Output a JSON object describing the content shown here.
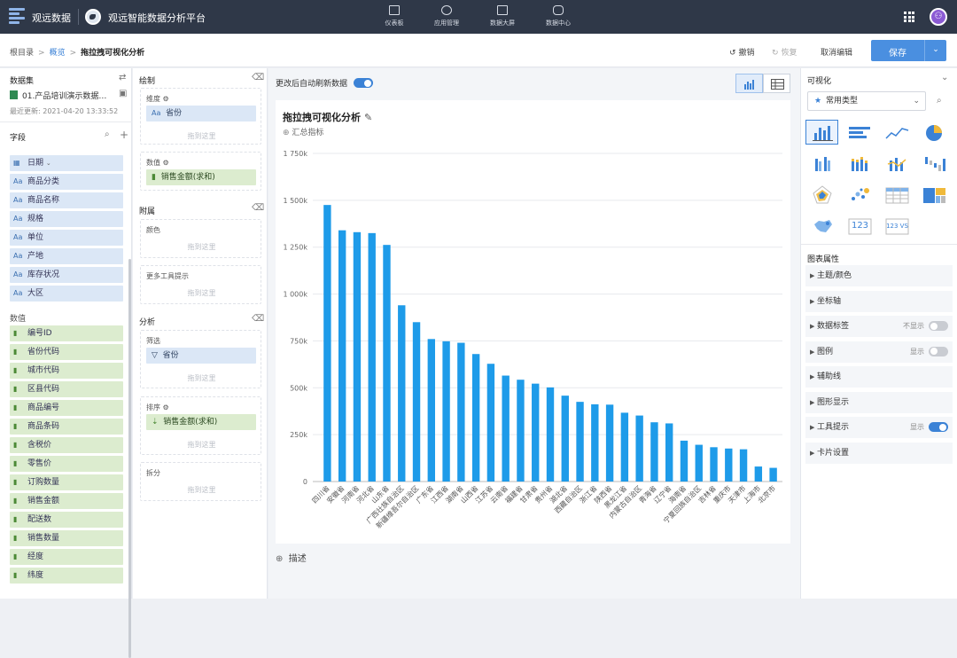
{
  "topbar": {
    "brand": "观远数据",
    "platform": "观远智能数据分析平台",
    "nav": [
      {
        "label": "仪表板",
        "icon": "dashboard-icon"
      },
      {
        "label": "应用管理",
        "icon": "apps-icon"
      },
      {
        "label": "数据大屏",
        "icon": "screen-icon"
      },
      {
        "label": "数据中心",
        "icon": "database-icon"
      }
    ]
  },
  "breadcrumb": {
    "root": "根目录",
    "sep": ">",
    "parent": "概览",
    "current": "拖拉拽可视化分析"
  },
  "toolbar": {
    "undo": "撤销",
    "redo": "恢复",
    "cancel_edit": "取消编辑",
    "save": "保存"
  },
  "dataset": {
    "header": "数据集",
    "name": "01.产品培训演示数据…",
    "updated": "最近更新: 2021-04-20 13:33:52"
  },
  "fields": {
    "header": "字段",
    "dimensions": [
      {
        "type": "date",
        "label": "日期"
      },
      {
        "type": "Aa",
        "label": "商品分类"
      },
      {
        "type": "Aa",
        "label": "商品名称"
      },
      {
        "type": "Aa",
        "label": "规格"
      },
      {
        "type": "Aa",
        "label": "单位"
      },
      {
        "type": "Aa",
        "label": "产地"
      },
      {
        "type": "Aa",
        "label": "库存状况"
      },
      {
        "type": "Aa",
        "label": "大区"
      }
    ],
    "measures_header": "数值",
    "measures": [
      "编号ID",
      "省份代码",
      "城市代码",
      "区县代码",
      "商品编号",
      "商品条码",
      "含税价",
      "零售价",
      "订购数量",
      "销售金额",
      "配送数",
      "销售数量",
      "经度",
      "纬度"
    ]
  },
  "config": {
    "draw_header": "绘制",
    "dimension_label": "维度",
    "dimension_value": "省份",
    "value_label": "数值",
    "value_value": "销售金额(求和)",
    "drop_here": "拖到这里",
    "attach_header": "附属",
    "color_label": "颜色",
    "tooltip_label": "更多工具提示",
    "analysis_header": "分析",
    "filter_label": "筛选",
    "filter_value": "省份",
    "sort_label": "排序",
    "sort_value": "销售金额(求和)",
    "split_label": "拆分"
  },
  "canvas": {
    "auto_refresh": "更改后自动刷新数据",
    "auto_refresh_on": true,
    "title": "拖拉拽可视化分析",
    "add_metric": "汇总指标",
    "description": "描述"
  },
  "chart_data": {
    "type": "bar",
    "title": "拖拉拽可视化分析",
    "color": "#1e9be9",
    "categories": [
      "四川省",
      "安徽省",
      "河南省",
      "河北省",
      "山东省",
      "广西壮族自治区",
      "新疆维吾尔自治区",
      "广东省",
      "江西省",
      "湖南省",
      "山西省",
      "江苏省",
      "云南省",
      "福建省",
      "甘肃省",
      "贵州省",
      "湖北省",
      "西藏自治区",
      "浙江省",
      "陕西省",
      "黑龙江省",
      "内蒙古自治区",
      "青海省",
      "辽宁省",
      "海南省",
      "宁夏回族自治区",
      "吉林省",
      "重庆市",
      "天津市",
      "上海市",
      "北京市"
    ],
    "values": [
      1475000,
      1340000,
      1330000,
      1325000,
      1262000,
      940000,
      850000,
      760000,
      748000,
      740000,
      680000,
      628000,
      565000,
      543000,
      522000,
      502000,
      458000,
      425000,
      412000,
      410000,
      367000,
      352000,
      316000,
      310000,
      218000,
      196000,
      183000,
      176000,
      172000,
      80000,
      73000
    ],
    "yticks": [
      "0",
      "250k",
      "500k",
      "750k",
      "1 000k",
      "1 250k",
      "1 500k",
      "1 750k"
    ],
    "ylim": [
      0,
      1750000
    ],
    "grid": true
  },
  "right_panel": {
    "header": "可视化",
    "chart_type_select": "常用类型",
    "chart_types": [
      {
        "name": "bar-chart-icon",
        "active": true
      },
      {
        "name": "horizontal-bar-icon"
      },
      {
        "name": "line-chart-icon"
      },
      {
        "name": "pie-chart-icon"
      },
      {
        "name": "grouped-bar-icon"
      },
      {
        "name": "stacked-bar-icon"
      },
      {
        "name": "combo-chart-icon"
      },
      {
        "name": "waterfall-icon"
      },
      {
        "name": "radar-chart-icon"
      },
      {
        "name": "scatter-icon"
      },
      {
        "name": "table-icon"
      },
      {
        "name": "treemap-icon"
      },
      {
        "name": "map-icon"
      },
      {
        "name": "kpi-number-icon",
        "text": "123"
      },
      {
        "name": "kpi-compare-icon",
        "text": "123 VS"
      }
    ],
    "props_header": "图表属性",
    "props": [
      {
        "label": "主题/颜色"
      },
      {
        "label": "坐标轴"
      },
      {
        "label": "数据标签",
        "value": "不显示",
        "toggle": "off"
      },
      {
        "label": "图例",
        "value": "显示",
        "toggle": "off"
      },
      {
        "label": "辅助线"
      },
      {
        "label": "图形显示"
      },
      {
        "label": "工具提示",
        "value": "显示",
        "toggle": "on"
      },
      {
        "label": "卡片设置"
      }
    ]
  }
}
